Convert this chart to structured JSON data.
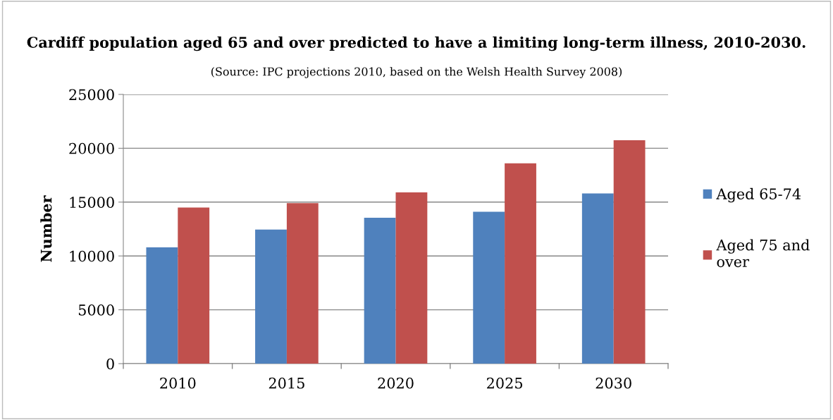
{
  "chart_data": {
    "type": "bar",
    "title": "Cardiff population aged 65 and over predicted to have a limiting long-term illness, 2010-2030.",
    "annotations": [
      "(Source: IPC projections 2010, based on the Welsh Health Survey 2008)"
    ],
    "ylabel": "Number",
    "categories": [
      "2010",
      "2015",
      "2020",
      "2025",
      "2030"
    ],
    "series": [
      {
        "name": "Aged 65-74",
        "color": "#4f81bd",
        "values": [
          10800,
          12450,
          13550,
          14100,
          15800
        ]
      },
      {
        "name": "Aged 75 and over",
        "color": "#c0504d",
        "values": [
          14500,
          14900,
          15900,
          18600,
          20750
        ]
      }
    ],
    "ylim": [
      0,
      25000
    ],
    "yticks": [
      0,
      5000,
      10000,
      15000,
      20000,
      25000
    ],
    "grid": "y",
    "legend": "right"
  }
}
